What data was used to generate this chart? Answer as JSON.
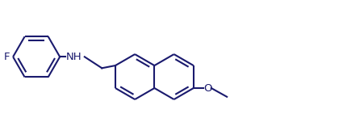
{
  "background_color": "#ffffff",
  "line_color": "#1a1a6e",
  "line_width": 1.5,
  "figsize": [
    4.3,
    1.46
  ],
  "dpi": 100,
  "F_label": "F",
  "NH_label": "NH",
  "O_label": "O",
  "label_fontsize": 9.5
}
